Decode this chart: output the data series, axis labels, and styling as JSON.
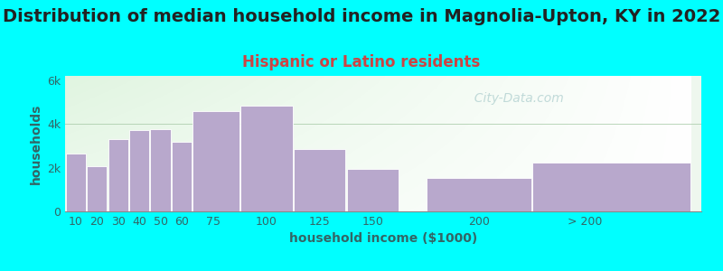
{
  "title": "Distribution of median household income in Magnolia-Upton, KY in 2022",
  "subtitle": "Hispanic or Latino residents",
  "xlabel": "household income ($1000)",
  "ylabel": "households",
  "background_color": "#00FFFF",
  "bar_color": "#b8a8cc",
  "bar_edge_color": "#ffffff",
  "categories": [
    "10",
    "20",
    "30",
    "40",
    "50",
    "60",
    "75",
    "100",
    "125",
    "150",
    "200",
    "> 200"
  ],
  "left_edges": [
    5,
    15,
    25,
    35,
    45,
    55,
    65,
    87.5,
    112.5,
    137.5,
    175,
    225
  ],
  "bar_widths": [
    10,
    10,
    10,
    10,
    10,
    10,
    22.5,
    25,
    25,
    25,
    50,
    75
  ],
  "values": [
    2650,
    2050,
    3300,
    3700,
    3750,
    3200,
    4600,
    4850,
    2850,
    1950,
    1550,
    2250
  ],
  "xtick_positions": [
    10,
    20,
    30,
    40,
    50,
    60,
    75,
    100,
    125,
    150,
    200,
    250
  ],
  "xtick_labels": [
    "10",
    "20",
    "30",
    "40",
    "50",
    "60",
    "75",
    "100",
    "125",
    "150",
    "200",
    "> 200"
  ],
  "ylim": [
    0,
    6200
  ],
  "yticks": [
    0,
    2000,
    4000,
    6000
  ],
  "ytick_labels": [
    "0",
    "2k",
    "4k",
    "6k"
  ],
  "watermark": "City-Data.com",
  "title_fontsize": 14,
  "subtitle_fontsize": 12,
  "axis_label_fontsize": 10,
  "tick_fontsize": 9,
  "title_color": "#222222",
  "subtitle_color": "#cc4444",
  "axis_color": "#336666",
  "watermark_color": "#aacccc"
}
